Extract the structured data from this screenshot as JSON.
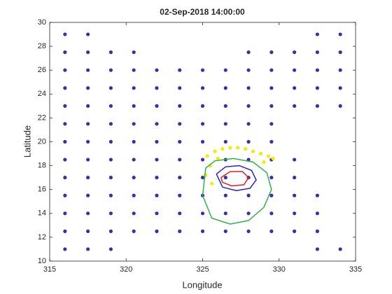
{
  "chart_data": {
    "type": "scatter",
    "title": "02-Sep-2018 14:00:00",
    "x_label": "Longitude",
    "y_label": "Latitude",
    "xlim": [
      315,
      335
    ],
    "xticks": [
      315,
      320,
      325,
      330,
      335
    ],
    "ylim": [
      10,
      30
    ],
    "yticks": [
      10,
      12,
      14,
      16,
      18,
      20,
      22,
      24,
      26,
      28,
      30
    ],
    "series": [
      {
        "color": "#3b2ea8",
        "style": "points",
        "x": [
          316,
          317.5,
          332.5,
          334,
          316,
          317.5,
          319,
          320.5,
          328,
          329.5,
          331,
          332.5,
          334,
          316,
          317.5,
          319,
          320.5,
          322,
          323.5,
          325,
          326.5,
          328,
          329.5,
          331,
          332.5,
          334,
          316,
          317.5,
          319,
          320.5,
          322,
          323.5,
          325,
          326.5,
          328,
          329.5,
          331,
          332.5,
          334,
          316,
          317.5,
          319,
          320.5,
          322,
          323.5,
          325,
          326.5,
          328,
          329.5,
          331,
          332.5,
          334,
          316,
          317.5,
          319,
          320.5,
          322,
          323.5,
          325,
          326.5,
          328,
          329.5,
          316,
          317.5,
          319,
          320.5,
          322,
          323.5,
          325,
          326.5,
          328,
          329.5,
          316,
          317.5,
          319,
          320.5,
          322,
          323.5,
          325,
          326.5,
          328,
          329.5,
          331,
          316,
          317.5,
          319,
          320.5,
          322,
          323.5,
          325,
          326.5,
          328,
          329.5,
          331,
          316,
          317.5,
          319,
          320.5,
          322,
          323.5,
          325,
          326.5,
          328,
          329.5,
          331,
          332.5,
          316,
          317.5,
          319,
          320.5,
          322,
          323.5,
          325,
          326.5,
          328,
          329.5,
          331,
          332.5,
          316,
          317.5,
          319,
          320.5,
          322,
          323.5,
          325,
          326.5,
          328,
          329.5,
          331,
          332.5,
          316,
          317.5,
          319,
          332.5,
          334
        ],
        "values": [
          29,
          29,
          29,
          29,
          27.5,
          27.5,
          27.5,
          27.5,
          27.5,
          27.5,
          27.5,
          27.5,
          27.5,
          26,
          26,
          26,
          26,
          26,
          26,
          26,
          26,
          26,
          26,
          26,
          26,
          26,
          24.5,
          24.5,
          24.5,
          24.5,
          24.5,
          24.5,
          24.5,
          24.5,
          24.5,
          24.5,
          24.5,
          24.5,
          24.5,
          23,
          23,
          23,
          23,
          23,
          23,
          23,
          23,
          23,
          23,
          23,
          23,
          23,
          21.5,
          21.5,
          21.5,
          21.5,
          21.5,
          21.5,
          21.5,
          21.5,
          21.5,
          21.5,
          20,
          20,
          20,
          20,
          20,
          20,
          20,
          20,
          20,
          20,
          18.5,
          18.5,
          18.5,
          18.5,
          18.5,
          18.5,
          18.5,
          18.5,
          18.5,
          18.5,
          18.5,
          17,
          17,
          17,
          17,
          17,
          17,
          17,
          17,
          17,
          17,
          17,
          15.5,
          15.5,
          15.5,
          15.5,
          15.5,
          15.5,
          15.5,
          15.5,
          15.5,
          15.5,
          15.5,
          15.5,
          14,
          14,
          14,
          14,
          14,
          14,
          14,
          14,
          14,
          14,
          14,
          14,
          12.5,
          12.5,
          12.5,
          12.5,
          12.5,
          12.5,
          12.5,
          12.5,
          12.5,
          12.5,
          12.5,
          12.5,
          11,
          11,
          11,
          11,
          11
        ]
      },
      {
        "color": "#f2ee00",
        "style": "points",
        "x": [
          325.3,
          325.8,
          326.3,
          326.8,
          327.3,
          327.8,
          328.3,
          328.8,
          329.3,
          325.5,
          326,
          329,
          329.6,
          325.2,
          325.6
        ],
        "values": [
          18.8,
          19.2,
          19.4,
          19.5,
          19.5,
          19.4,
          19.2,
          19,
          18.8,
          18,
          18.6,
          18.3,
          18.6,
          17.2,
          16.5
        ]
      },
      {
        "color": "#2db34a",
        "style": "line",
        "x": [
          325.2,
          325.8,
          327,
          328.3,
          329.2,
          329.5,
          329,
          328,
          326.8,
          325.6,
          325,
          325.2
        ],
        "values": [
          17.8,
          18.4,
          18.6,
          18.3,
          17.4,
          16,
          14.5,
          13.4,
          13.1,
          13.6,
          15.5,
          17.8
        ]
      },
      {
        "color": "#2020d0",
        "style": "line",
        "x": [
          325.9,
          326.5,
          327.4,
          328.2,
          328.5,
          328.1,
          327.2,
          326.3,
          325.9
        ],
        "values": [
          17.3,
          17.9,
          18,
          17.6,
          16.8,
          16.1,
          15.9,
          16.2,
          17.3
        ]
      },
      {
        "color": "#e02020",
        "style": "line",
        "x": [
          326.2,
          326.8,
          327.6,
          328,
          327.7,
          326.9,
          326.3,
          326.2
        ],
        "values": [
          17,
          17.5,
          17.5,
          17,
          16.4,
          16.3,
          16.6,
          17
        ]
      }
    ]
  }
}
